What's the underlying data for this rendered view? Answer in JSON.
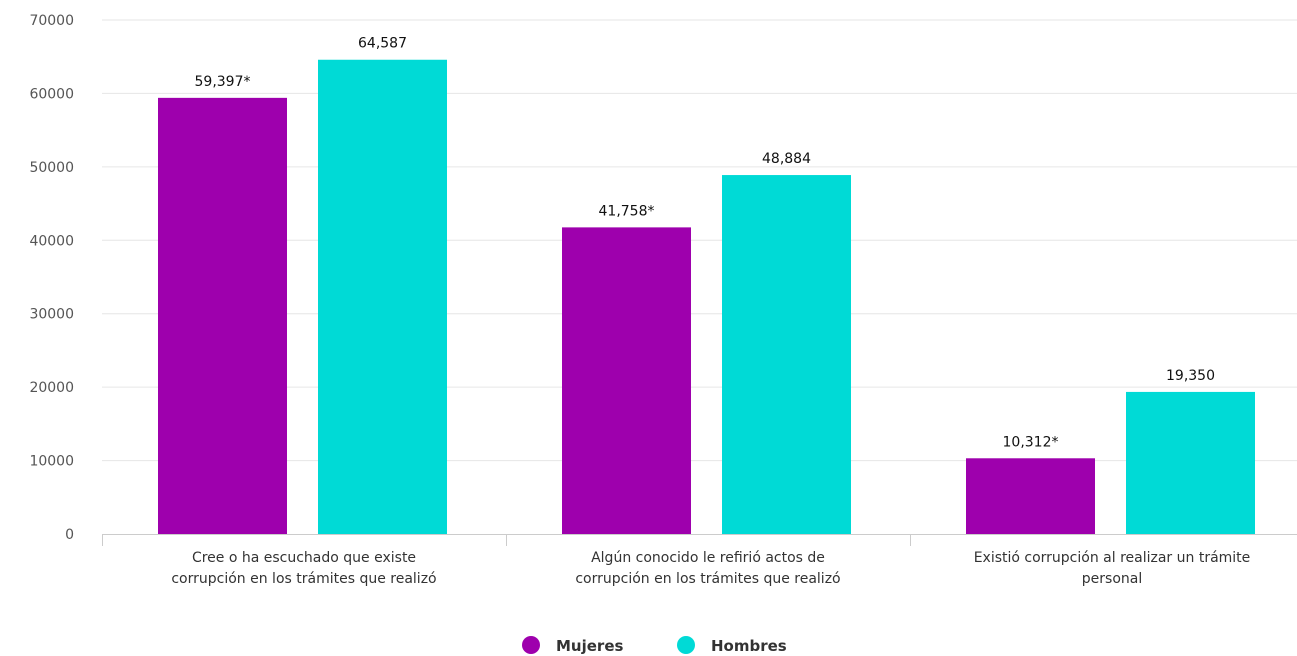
{
  "chart_data": {
    "type": "bar",
    "title": "",
    "xlabel": "",
    "ylabel": "",
    "ylim": [
      0,
      70000
    ],
    "yticks": [
      0,
      10000,
      20000,
      30000,
      40000,
      50000,
      60000,
      70000
    ],
    "yticks_labels": [
      "0",
      "10000",
      "20000",
      "30000",
      "40000",
      "50000",
      "60000",
      "70000"
    ],
    "grid": true,
    "legend_position": "bottom-center",
    "categories": [
      [
        "Cree o ha escuchado que existe",
        "corrupción en los trámites que realizó"
      ],
      [
        "Algún conocido le refirió actos de",
        "corrupción en los trámites que realizó"
      ],
      [
        "Existió corrupción al realizar un trámite",
        "personal"
      ]
    ],
    "series": [
      {
        "name": "Mujeres",
        "color": "#9e00ad",
        "values": [
          59397,
          41758,
          10312
        ],
        "labels": [
          "59,397*",
          "41,758*",
          "10,312*"
        ]
      },
      {
        "name": "Hombres",
        "color": "#00dad6",
        "values": [
          64587,
          48884,
          19350
        ],
        "labels": [
          "64,587",
          "48,884",
          "19,350"
        ]
      }
    ]
  }
}
